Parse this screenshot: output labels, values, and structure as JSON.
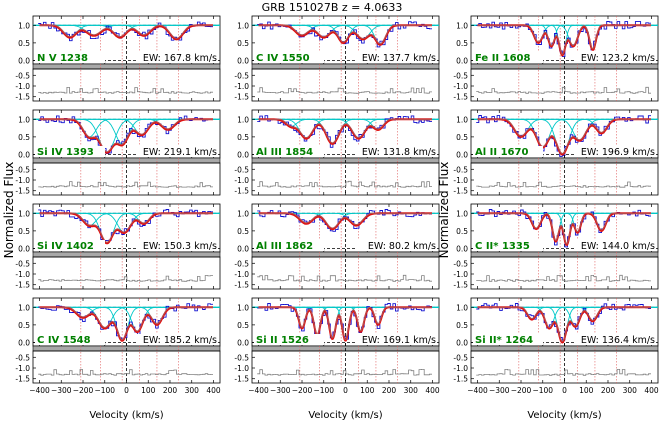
{
  "figure": {
    "title": "GRB 151027B  z = 4.0633",
    "ylabel": "Normalized Flux",
    "xlabel": "Velocity (km/s)"
  },
  "colors": {
    "data": "#1010d0",
    "fit": "#e01010",
    "components": "#00c8c8",
    "species_fit": "#b05050",
    "residual": "#808080",
    "component_markers": "#e06060",
    "label": "#008000",
    "gray_band": "#a8a8a8"
  },
  "chart_data": {
    "type": "line",
    "x_range": [
      -430,
      430
    ],
    "x_ticks": [
      -400,
      -300,
      -200,
      -100,
      0,
      100,
      200,
      300,
      400
    ],
    "flux_ticks": [
      0.0,
      0.5,
      1.0
    ],
    "residual_ticks": [
      -0.5,
      -1.0,
      -1.5
    ],
    "component_velocities": [
      -210,
      -120,
      -20,
      60,
      140,
      240
    ],
    "panels": [
      {
        "label": "N V 1238",
        "ew": "EW: 167.8 km/s",
        "components": [
          {
            "v": -260,
            "d": 0.35,
            "w": 30
          },
          {
            "v": -150,
            "d": 0.3,
            "w": 35
          },
          {
            "v": -30,
            "d": 0.35,
            "w": 30
          },
          {
            "v": 80,
            "d": 0.3,
            "w": 30
          },
          {
            "v": 230,
            "d": 0.4,
            "w": 30
          }
        ]
      },
      {
        "label": "C IV 1550",
        "ew": "EW: 137.7 km/s",
        "components": [
          {
            "v": -200,
            "d": 0.3,
            "w": 30
          },
          {
            "v": -100,
            "d": 0.35,
            "w": 30
          },
          {
            "v": -10,
            "d": 0.5,
            "w": 25
          },
          {
            "v": 80,
            "d": 0.4,
            "w": 30
          },
          {
            "v": 160,
            "d": 0.55,
            "w": 25
          }
        ]
      },
      {
        "label": "Fe II 1608",
        "ew": "EW: 123.2 km/s",
        "components": [
          {
            "v": -120,
            "d": 0.5,
            "w": 20
          },
          {
            "v": -60,
            "d": 0.6,
            "w": 15
          },
          {
            "v": -10,
            "d": 0.85,
            "w": 15
          },
          {
            "v": 40,
            "d": 0.6,
            "w": 20
          },
          {
            "v": 130,
            "d": 0.7,
            "w": 15
          }
        ]
      },
      {
        "label": "Si IV 1393",
        "ew": "EW: 219.1 km/s",
        "components": [
          {
            "v": -170,
            "d": 0.5,
            "w": 30
          },
          {
            "v": -90,
            "d": 0.95,
            "w": 35
          },
          {
            "v": -20,
            "d": 0.7,
            "w": 30
          },
          {
            "v": 70,
            "d": 0.45,
            "w": 30
          },
          {
            "v": 190,
            "d": 0.3,
            "w": 30
          }
        ]
      },
      {
        "label": "Al III 1854",
        "ew": "EW: 131.8 km/s",
        "components": [
          {
            "v": -250,
            "d": 0.2,
            "w": 25
          },
          {
            "v": -180,
            "d": 0.55,
            "w": 30
          },
          {
            "v": -60,
            "d": 0.7,
            "w": 30
          },
          {
            "v": 60,
            "d": 0.55,
            "w": 30
          },
          {
            "v": 150,
            "d": 0.3,
            "w": 25
          }
        ]
      },
      {
        "label": "Al II 1670",
        "ew": "EW: 196.9 km/s",
        "components": [
          {
            "v": -200,
            "d": 0.5,
            "w": 30
          },
          {
            "v": -100,
            "d": 0.8,
            "w": 30
          },
          {
            "v": -10,
            "d": 1.0,
            "w": 30
          },
          {
            "v": 70,
            "d": 0.6,
            "w": 30
          },
          {
            "v": 170,
            "d": 0.4,
            "w": 25
          }
        ]
      },
      {
        "label": "Si IV 1402",
        "ew": "EW: 150.3 km/s",
        "components": [
          {
            "v": -170,
            "d": 0.35,
            "w": 30
          },
          {
            "v": -90,
            "d": 0.85,
            "w": 30
          },
          {
            "v": -10,
            "d": 0.55,
            "w": 30
          },
          {
            "v": 80,
            "d": 0.3,
            "w": 25
          }
        ]
      },
      {
        "label": "Al III 1862",
        "ew": "EW: 80.2 km/s",
        "components": [
          {
            "v": -180,
            "d": 0.3,
            "w": 30
          },
          {
            "v": -60,
            "d": 0.45,
            "w": 30
          },
          {
            "v": 50,
            "d": 0.35,
            "w": 30
          }
        ]
      },
      {
        "label": "C II* 1335",
        "ew": "EW: 144.0 km/s",
        "components": [
          {
            "v": -130,
            "d": 0.45,
            "w": 20
          },
          {
            "v": -40,
            "d": 0.8,
            "w": 15
          },
          {
            "v": 10,
            "d": 0.9,
            "w": 15
          },
          {
            "v": 60,
            "d": 0.55,
            "w": 15
          },
          {
            "v": 170,
            "d": 0.5,
            "w": 20
          }
        ]
      },
      {
        "label": "C IV 1548",
        "ew": "EW: 185.2 km/s",
        "components": [
          {
            "v": -200,
            "d": 0.3,
            "w": 30
          },
          {
            "v": -100,
            "d": 0.6,
            "w": 30
          },
          {
            "v": -20,
            "d": 0.95,
            "w": 25
          },
          {
            "v": 50,
            "d": 0.7,
            "w": 25
          },
          {
            "v": 140,
            "d": 0.5,
            "w": 25
          }
        ]
      },
      {
        "label": "Si II 1526",
        "ew": "EW: 169.1 km/s",
        "components": [
          {
            "v": -200,
            "d": 0.6,
            "w": 15
          },
          {
            "v": -130,
            "d": 0.8,
            "w": 15
          },
          {
            "v": -60,
            "d": 0.9,
            "w": 15
          },
          {
            "v": 0,
            "d": 0.95,
            "w": 15
          },
          {
            "v": 70,
            "d": 0.7,
            "w": 15
          },
          {
            "v": 150,
            "d": 0.5,
            "w": 15
          }
        ]
      },
      {
        "label": "Si II* 1264",
        "ew": "EW: 136.4 km/s",
        "components": [
          {
            "v": -150,
            "d": 0.35,
            "w": 20
          },
          {
            "v": -70,
            "d": 0.6,
            "w": 20
          },
          {
            "v": -10,
            "d": 1.0,
            "w": 20
          },
          {
            "v": 50,
            "d": 0.55,
            "w": 20
          },
          {
            "v": 130,
            "d": 0.4,
            "w": 20
          }
        ]
      }
    ]
  }
}
